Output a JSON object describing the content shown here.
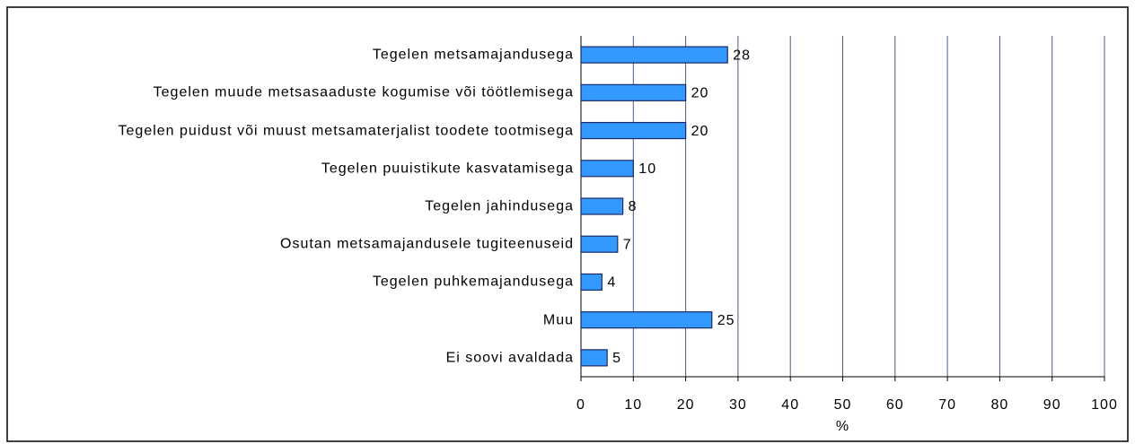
{
  "chart_data": {
    "type": "barh",
    "categories": [
      "Tegelen metsamajandusega",
      "Tegelen muude metsasaaduste kogumise või töötlemisega",
      "Tegelen puidust või muust metsamaterjalist toodete tootmisega",
      "Tegelen puuistikute kasvatamisega",
      "Tegelen jahindusega",
      "Osutan metsamajandusele tugiteenuseid",
      "Tegelen puhkemajandusega",
      "Muu",
      "Ei soovi avaldada"
    ],
    "values": [
      28,
      20,
      20,
      10,
      8,
      7,
      4,
      25,
      5
    ],
    "color": "#3399ff",
    "xlabel": "%",
    "xlim": [
      0,
      100
    ],
    "xticks": [
      0,
      10,
      20,
      30,
      40,
      50,
      60,
      70,
      80,
      90,
      100
    ],
    "grid": true
  }
}
